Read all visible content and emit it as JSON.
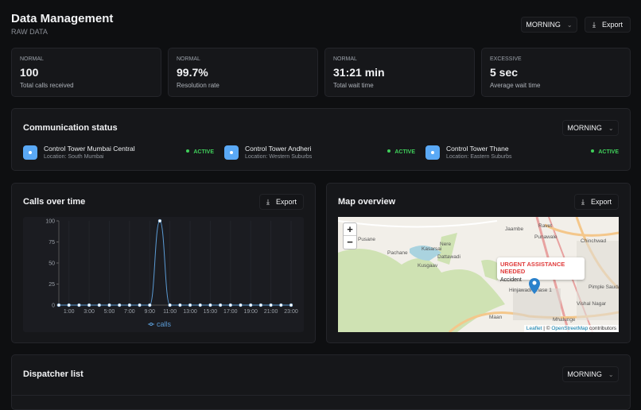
{
  "header": {
    "title": "Data Management",
    "subtitle": "RAW DATA",
    "period": "MORNING",
    "export": "Export"
  },
  "stats": [
    {
      "status": "NORMAL",
      "value": "100",
      "label": "Total calls received"
    },
    {
      "status": "NORMAL",
      "value": "99.7%",
      "label": "Resolution rate"
    },
    {
      "status": "NORMAL",
      "value": "31:21 min",
      "label": "Total wait time"
    },
    {
      "status": "EXCESSIVE",
      "value": "5 sec",
      "label": "Average wait time"
    }
  ],
  "communication": {
    "title": "Communication status",
    "period": "MORNING",
    "towers": [
      {
        "name": "Control Tower Mumbai Central",
        "location": "Location: South Mumbai",
        "status": "ACTIVE"
      },
      {
        "name": "Control Tower Andheri",
        "location": "Location: Western Suburbs",
        "status": "ACTIVE"
      },
      {
        "name": "Control Tower Thane",
        "location": "Location: Eastern Suburbs",
        "status": "ACTIVE"
      }
    ]
  },
  "calls": {
    "title": "Calls over time",
    "export": "Export"
  },
  "chart_data": {
    "type": "line",
    "x": [
      "0:00",
      "1:00",
      "2:00",
      "3:00",
      "4:00",
      "5:00",
      "6:00",
      "7:00",
      "8:00",
      "9:00",
      "10:00",
      "11:00",
      "12:00",
      "13:00",
      "14:00",
      "15:00",
      "16:00",
      "17:00",
      "18:00",
      "19:00",
      "20:00",
      "21:00",
      "22:00",
      "23:00"
    ],
    "xticks": [
      "1:00",
      "3:00",
      "5:00",
      "7:00",
      "9:00",
      "11:00",
      "13:00",
      "15:00",
      "17:00",
      "19:00",
      "21:00",
      "23:00"
    ],
    "yticks": [
      "0",
      "25",
      "50",
      "75",
      "100"
    ],
    "ylim": [
      0,
      100
    ],
    "series": [
      {
        "name": "calls",
        "values": [
          0,
          0,
          0,
          0,
          0,
          0,
          0,
          0,
          0,
          0,
          100,
          0,
          0,
          0,
          0,
          0,
          0,
          0,
          0,
          0,
          0,
          0,
          0,
          0
        ]
      }
    ],
    "legend": "bottom",
    "color": "#5b9bd5",
    "grid": true
  },
  "map": {
    "title": "Map overview",
    "export": "Export",
    "zoom_in": "+",
    "zoom_out": "−",
    "popup": {
      "title": "URGENT ASSISTANCE NEEDED",
      "text": "Accident"
    },
    "places": [
      "Jaambe",
      "Ravet",
      "Punawale",
      "Chinchwad",
      "Pusane",
      "Nere",
      "Kasarsai",
      "Pachane",
      "Dattawadi",
      "Kusgaav",
      "Wakad",
      "Pimple Saudagar",
      "Hinjawadi Phase 1",
      "Vishal Nagar",
      "Maan",
      "Mhalunge"
    ],
    "attribution": {
      "leaflet": "Leaflet",
      "sep": " | © ",
      "osm": "OpenStreetMap",
      "rest": " contributors"
    }
  },
  "dispatcher": {
    "title": "Dispatcher list",
    "period": "MORNING"
  }
}
